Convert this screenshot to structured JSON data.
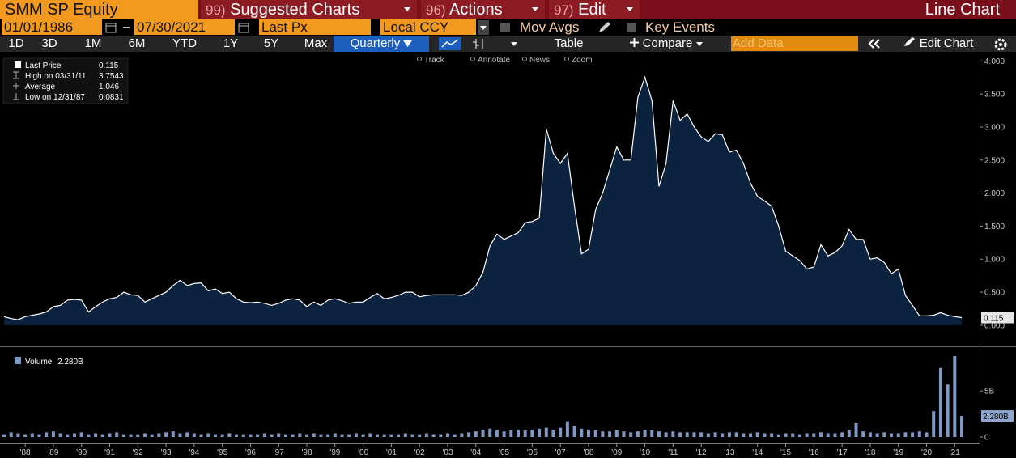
{
  "toolbar": {
    "security": "SMM SP Equity",
    "menus": [
      {
        "code": "99)",
        "label": "Suggested Charts"
      },
      {
        "code": "96)",
        "label": "Actions"
      },
      {
        "code": "97)",
        "label": "Edit"
      }
    ],
    "chart_kind": "Line Chart",
    "start_date": "01/01/1986",
    "end_date": "07/30/2021",
    "field": "Last Px",
    "currency": "Local CCY",
    "toggles": [
      "Mov Avgs",
      "Key Events"
    ],
    "periods": [
      "1D",
      "3D",
      "1M",
      "6M",
      "YTD",
      "1Y",
      "5Y",
      "Max"
    ],
    "frequency": "Quarterly",
    "table": "Table",
    "compare": "Compare",
    "add_data": "Add Data",
    "edit_chart": "Edit Chart"
  },
  "chart_tools": [
    "Track",
    "Annotate",
    "News",
    "Zoom"
  ],
  "chart_data": [
    {
      "type": "area",
      "series_name": "Last Price",
      "stats": [
        {
          "label": "Last Price",
          "value": 0.115
        },
        {
          "label": "High on 03/31/11",
          "value": 3.7543
        },
        {
          "label": "Average",
          "value": 1.046
        },
        {
          "label": "Low on 12/31/87",
          "value": 0.0831
        }
      ],
      "last_label": "0.115",
      "color": "#ffffff",
      "fill": "#0c2340",
      "values": [
        0.13,
        0.1,
        0.0831,
        0.13,
        0.15,
        0.17,
        0.2,
        0.28,
        0.3,
        0.38,
        0.39,
        0.38,
        0.2,
        0.28,
        0.35,
        0.4,
        0.42,
        0.5,
        0.46,
        0.45,
        0.35,
        0.4,
        0.45,
        0.5,
        0.6,
        0.68,
        0.6,
        0.63,
        0.64,
        0.52,
        0.55,
        0.48,
        0.5,
        0.4,
        0.35,
        0.34,
        0.35,
        0.33,
        0.3,
        0.33,
        0.38,
        0.4,
        0.38,
        0.28,
        0.35,
        0.3,
        0.38,
        0.4,
        0.37,
        0.33,
        0.35,
        0.35,
        0.42,
        0.48,
        0.4,
        0.42,
        0.45,
        0.5,
        0.5,
        0.43,
        0.45,
        0.46,
        0.46,
        0.46,
        0.46,
        0.45,
        0.5,
        0.6,
        0.8,
        1.2,
        1.38,
        1.3,
        1.35,
        1.4,
        1.55,
        1.57,
        1.62,
        2.97,
        2.6,
        2.45,
        2.6,
        1.8,
        1.08,
        1.15,
        1.75,
        2.0,
        2.35,
        2.7,
        2.5,
        2.5,
        3.45,
        3.7543,
        3.4,
        2.1,
        2.45,
        3.4,
        3.1,
        3.2,
        3.0,
        2.85,
        2.78,
        2.9,
        2.88,
        2.62,
        2.65,
        2.45,
        2.15,
        1.95,
        1.88,
        1.8,
        1.5,
        1.12,
        1.05,
        0.98,
        0.85,
        0.88,
        1.22,
        1.05,
        1.1,
        1.2,
        1.45,
        1.3,
        1.3,
        1.0,
        1.02,
        0.95,
        0.78,
        0.85,
        0.45,
        0.3,
        0.14,
        0.14,
        0.15,
        0.19,
        0.15,
        0.13,
        0.115
      ],
      "ylim": [
        -0.32,
        4.09
      ],
      "yticks": [
        {
          "value": 0,
          "label": "0.000"
        },
        {
          "value": 0.5,
          "label": "0.500"
        },
        {
          "value": 1,
          "label": "1.000"
        },
        {
          "value": 1.5,
          "label": "1.500"
        },
        {
          "value": 2,
          "label": "2.000"
        },
        {
          "value": 2.5,
          "label": "2.500"
        },
        {
          "value": 3,
          "label": "3.000"
        },
        {
          "value": 3.5,
          "label": "3.500"
        },
        {
          "value": 4,
          "label": "4.000"
        }
      ]
    },
    {
      "type": "bar",
      "series_name": "Volume",
      "last_label": "2.280B",
      "color": "#7f98c4",
      "categories": [
        null,
        null,
        null,
        "'88",
        null,
        null,
        null,
        "'89",
        null,
        null,
        null,
        "'90",
        null,
        null,
        null,
        "'91",
        null,
        null,
        null,
        "'92",
        null,
        null,
        null,
        "'93",
        null,
        null,
        null,
        "'94",
        null,
        null,
        null,
        "'95",
        null,
        null,
        null,
        "'96",
        null,
        null,
        null,
        "'97",
        null,
        null,
        null,
        "'98",
        null,
        null,
        null,
        "'99",
        null,
        null,
        null,
        "'00",
        null,
        null,
        null,
        "'01",
        null,
        null,
        null,
        "'02",
        null,
        null,
        null,
        "'03",
        null,
        null,
        null,
        "'04",
        null,
        null,
        null,
        "'05",
        null,
        null,
        null,
        "'06",
        null,
        null,
        null,
        "'07",
        null,
        null,
        null,
        "'08",
        null,
        null,
        null,
        "'09",
        null,
        null,
        null,
        "'10",
        null,
        null,
        null,
        "'11",
        null,
        null,
        null,
        "'12",
        null,
        null,
        null,
        "'13",
        null,
        null,
        null,
        "'14",
        null,
        null,
        null,
        "'15",
        null,
        null,
        null,
        "'16",
        null,
        null,
        null,
        "'17",
        null,
        null,
        null,
        "'18",
        null,
        null,
        null,
        "'19",
        null,
        null,
        null,
        "'20",
        null,
        null,
        null,
        "'21",
        null
      ],
      "values": [
        0.3,
        0.5,
        0.4,
        0.3,
        0.4,
        0.3,
        0.5,
        0.6,
        0.4,
        0.3,
        0.4,
        0.5,
        0.3,
        0.4,
        0.3,
        0.4,
        0.5,
        0.3,
        0.3,
        0.3,
        0.4,
        0.3,
        0.4,
        0.5,
        0.6,
        0.4,
        0.5,
        0.4,
        0.3,
        0.4,
        0.3,
        0.3,
        0.4,
        0.3,
        0.3,
        0.3,
        0.3,
        0.4,
        0.3,
        0.4,
        0.3,
        0.3,
        0.4,
        0.3,
        0.4,
        0.3,
        0.3,
        0.4,
        0.3,
        0.3,
        0.4,
        0.3,
        0.4,
        0.3,
        0.3,
        0.3,
        0.3,
        0.4,
        0.3,
        0.3,
        0.4,
        0.3,
        0.3,
        0.4,
        0.3,
        0.4,
        0.5,
        0.6,
        0.8,
        0.9,
        0.7,
        0.6,
        0.7,
        0.8,
        0.7,
        0.8,
        0.9,
        1.0,
        0.8,
        1.0,
        1.7,
        1.2,
        0.9,
        0.8,
        0.7,
        0.6,
        0.6,
        0.7,
        0.6,
        0.5,
        0.6,
        0.8,
        0.7,
        0.6,
        0.5,
        0.6,
        0.5,
        0.5,
        0.5,
        0.5,
        0.4,
        0.5,
        0.4,
        0.5,
        0.5,
        0.4,
        0.4,
        0.5,
        0.4,
        0.4,
        0.3,
        0.4,
        0.4,
        0.3,
        0.4,
        0.4,
        0.5,
        0.4,
        0.4,
        0.5,
        0.7,
        1.5,
        0.6,
        0.5,
        0.4,
        0.5,
        0.4,
        0.4,
        0.5,
        0.5,
        0.6,
        0.5,
        2.8,
        7.5,
        5.7,
        8.8,
        2.28
      ],
      "ylim": [
        0,
        9.5
      ],
      "yticks": [
        0,
        {
          "value": 5,
          "label": "5B"
        }
      ]
    }
  ]
}
